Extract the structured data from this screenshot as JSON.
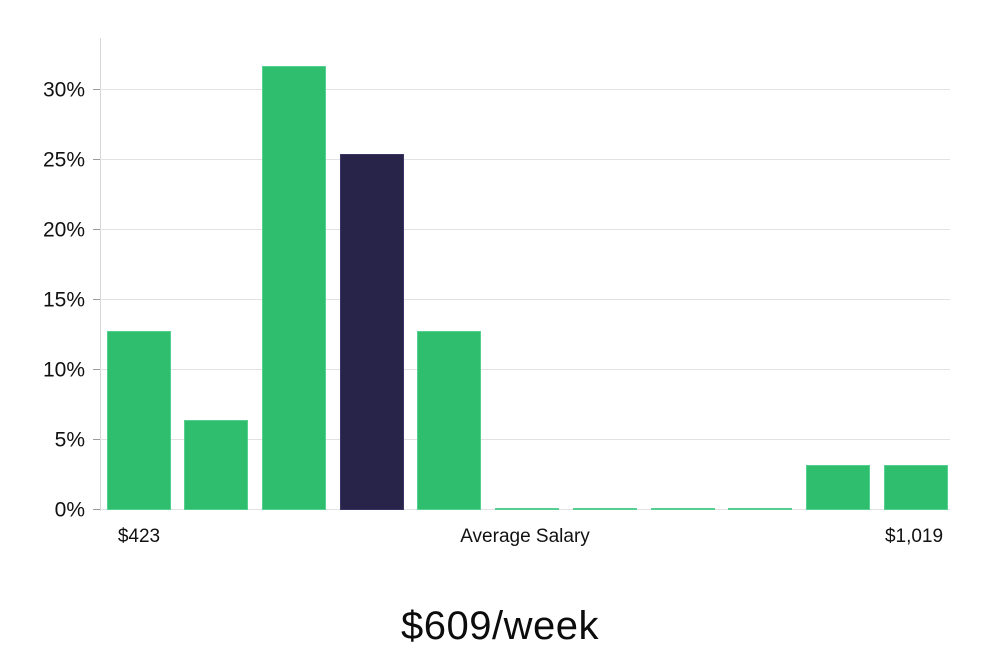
{
  "chart_data": {
    "type": "bar",
    "title": "$609/week",
    "values": [
      12.8,
      6.4,
      31.7,
      25.4,
      12.8,
      0.1,
      0.1,
      0.1,
      0.1,
      3.2,
      3.2
    ],
    "highlight_index": 3,
    "x_labels": {
      "left": "$423",
      "center": "Average Salary",
      "right": "$1,019"
    },
    "yticks": [
      0,
      5,
      10,
      15,
      20,
      25,
      30
    ],
    "ytick_labels": [
      "0%",
      "5%",
      "10%",
      "15%",
      "20%",
      "25%",
      "30%"
    ],
    "ymax": 33.71,
    "grid": true,
    "legend": "none",
    "colors": {
      "bar": "#2ebe6e",
      "bar_edge": "#55d091",
      "highlight": "#282349",
      "highlight_edge": "#3b3566",
      "gridline": "#e2e2e2",
      "axis": "#d6d6d6",
      "text": "#111111"
    }
  }
}
